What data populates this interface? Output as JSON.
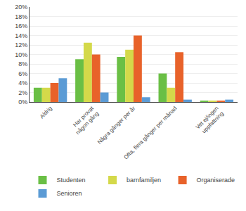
{
  "chart_data": {
    "type": "bar",
    "categories": [
      "Aldrig",
      "Har provat\nnågon gång",
      "Några gånger per år",
      "Ofta, flera gånger per månad",
      "Vet ej/ingen\nuppfattning"
    ],
    "series": [
      {
        "name": "Studenten",
        "color": "#6abf45",
        "values": [
          3,
          9,
          9.5,
          6,
          0.3
        ]
      },
      {
        "name": "barnfamiljen",
        "color": "#d4d94a",
        "values": [
          3,
          12.5,
          11,
          3,
          0.3
        ]
      },
      {
        "name": "Organiserade",
        "color": "#e8622a",
        "values": [
          4,
          10,
          14,
          10.5,
          0.3
        ]
      },
      {
        "name": "Senioren",
        "color": "#5b9bd5",
        "values": [
          5,
          2,
          1,
          0.5,
          0.5
        ]
      }
    ],
    "ylim": [
      0,
      20
    ],
    "yticks": [
      {
        "value": 0,
        "label": "0%"
      },
      {
        "value": 2,
        "label": "2%"
      },
      {
        "value": 4,
        "label": "4%"
      },
      {
        "value": 6,
        "label": "6%"
      },
      {
        "value": 8,
        "label": "8%"
      },
      {
        "value": 10,
        "label": "10%"
      },
      {
        "value": 12,
        "label": "12%"
      },
      {
        "value": 14,
        "label": "14%"
      },
      {
        "value": 16,
        "label": "16%"
      },
      {
        "value": 18,
        "label": "18%"
      },
      {
        "value": 20,
        "label": "20%"
      }
    ],
    "grid": true,
    "legend": "bottom"
  }
}
